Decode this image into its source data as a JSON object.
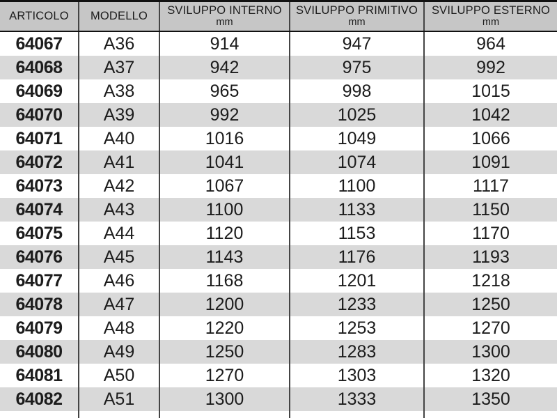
{
  "table": {
    "columns": [
      {
        "label": "ARTICOLO",
        "sub": ""
      },
      {
        "label": "MODELLO",
        "sub": ""
      },
      {
        "label": "SVILUPPO INTERNO",
        "sub": "mm"
      },
      {
        "label": "SVILUPPO PRIMITIVO",
        "sub": "mm"
      },
      {
        "label": "SVILUPPO ESTERNO",
        "sub": "mm"
      }
    ],
    "rows": [
      [
        "64067",
        "A36",
        "914",
        "947",
        "964"
      ],
      [
        "64068",
        "A37",
        "942",
        "975",
        "992"
      ],
      [
        "64069",
        "A38",
        "965",
        "998",
        "1015"
      ],
      [
        "64070",
        "A39",
        "992",
        "1025",
        "1042"
      ],
      [
        "64071",
        "A40",
        "1016",
        "1049",
        "1066"
      ],
      [
        "64072",
        "A41",
        "1041",
        "1074",
        "1091"
      ],
      [
        "64073",
        "A42",
        "1067",
        "1100",
        "1117"
      ],
      [
        "64074",
        "A43",
        "1100",
        "1133",
        "1150"
      ],
      [
        "64075",
        "A44",
        "1120",
        "1153",
        "1170"
      ],
      [
        "64076",
        "A45",
        "1143",
        "1176",
        "1193"
      ],
      [
        "64077",
        "A46",
        "1168",
        "1201",
        "1218"
      ],
      [
        "64078",
        "A47",
        "1200",
        "1233",
        "1250"
      ],
      [
        "64079",
        "A48",
        "1220",
        "1253",
        "1270"
      ],
      [
        "64080",
        "A49",
        "1250",
        "1283",
        "1300"
      ],
      [
        "64081",
        "A50",
        "1270",
        "1303",
        "1320"
      ],
      [
        "64082",
        "A51",
        "1300",
        "1333",
        "1350"
      ]
    ]
  },
  "colors": {
    "header_bg": "#c6c6c6",
    "stripe_bg": "#d9d9d9",
    "row_bg": "#ffffff",
    "divider": "#444444",
    "border_strong": "#111111",
    "text": "#1c1c1c"
  }
}
